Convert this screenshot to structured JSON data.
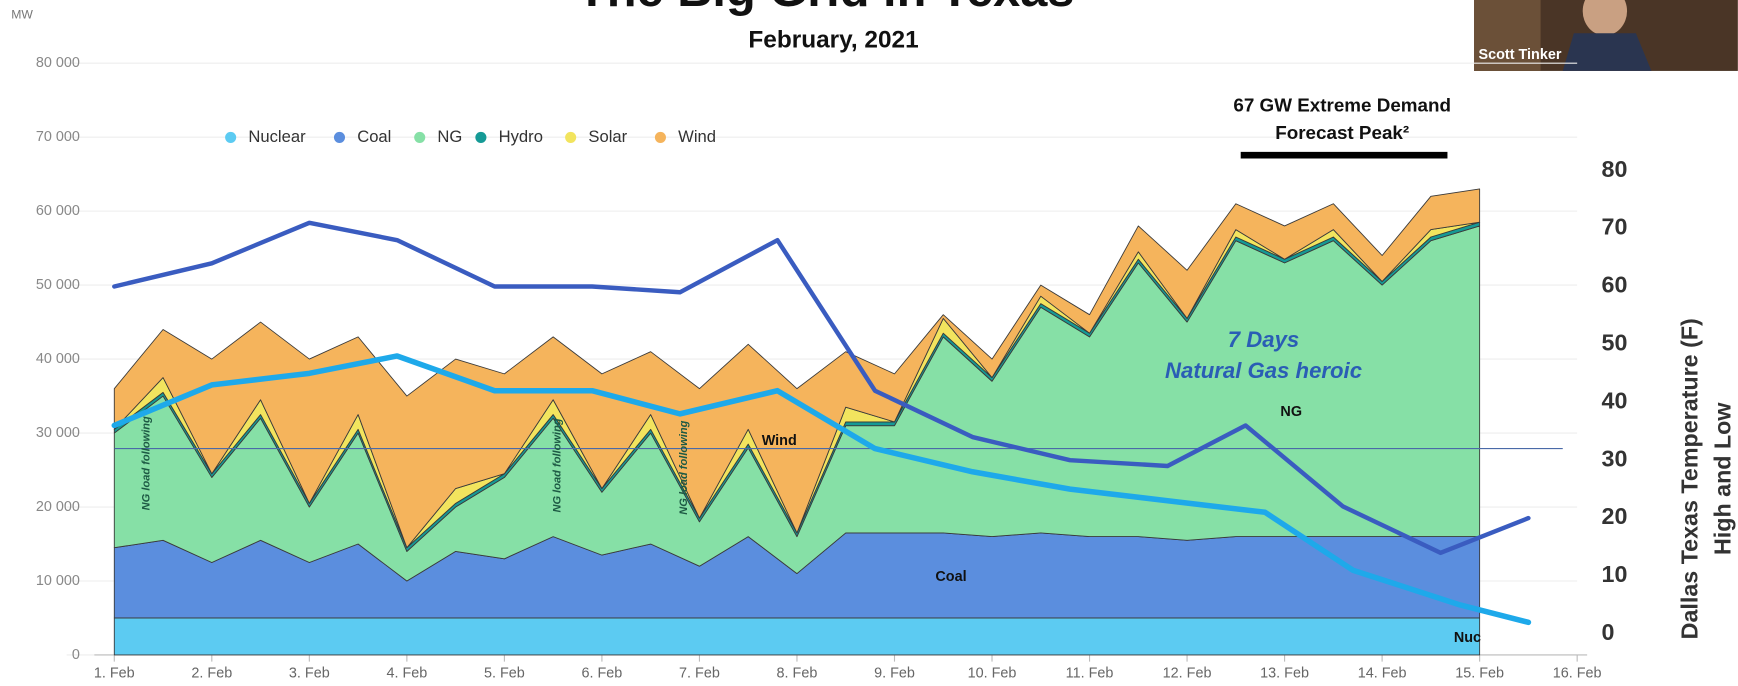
{
  "chart_data": {
    "type": "area",
    "stacked": true,
    "title": "The Big Grid in Texas",
    "subtitle": "February, 2021",
    "y_label": "MW",
    "y2_label": [
      "Dallas Texas Temperature (F)",
      "High and Low"
    ],
    "legend_position": "top-left",
    "grid": true,
    "x": [
      1,
      1.5,
      2,
      2.5,
      3,
      3.5,
      4,
      4.5,
      5,
      5.5,
      6,
      6.5,
      7,
      7.5,
      8,
      8.5,
      9,
      9.5,
      10,
      10.5,
      11,
      11.5,
      12,
      12.5,
      13,
      13.5,
      14,
      14.5,
      15
    ],
    "xlim": [
      1,
      16
    ],
    "xticks": [
      {
        "value": 1,
        "label": "1. Feb"
      },
      {
        "value": 2,
        "label": "2. Feb"
      },
      {
        "value": 3,
        "label": "3. Feb"
      },
      {
        "value": 4,
        "label": "4. Feb"
      },
      {
        "value": 5,
        "label": "5. Feb"
      },
      {
        "value": 6,
        "label": "6. Feb"
      },
      {
        "value": 7,
        "label": "7. Feb"
      },
      {
        "value": 8,
        "label": "8. Feb"
      },
      {
        "value": 9,
        "label": "9. Feb"
      },
      {
        "value": 10,
        "label": "10. Feb"
      },
      {
        "value": 11,
        "label": "11. Feb"
      },
      {
        "value": 12,
        "label": "12. Feb"
      },
      {
        "value": 13,
        "label": "13. Feb"
      },
      {
        "value": 14,
        "label": "14. Feb"
      },
      {
        "value": 15,
        "label": "15. Feb"
      },
      {
        "value": 16,
        "label": "16. Feb"
      }
    ],
    "ylim": [
      0,
      80000
    ],
    "yticks": [
      0,
      {
        "value": 10000,
        "label": "10 000"
      },
      {
        "value": 20000,
        "label": "20 000"
      },
      {
        "value": 30000,
        "label": "30 000"
      },
      {
        "value": 40000,
        "label": "40 000"
      },
      {
        "value": 50000,
        "label": "50 000"
      },
      {
        "value": 60000,
        "label": "60 000"
      },
      {
        "value": 70000,
        "label": "70 000"
      },
      {
        "value": 80000,
        "label": "80 000"
      }
    ],
    "y2lim": [
      0,
      80
    ],
    "y2ticks": [
      0,
      10,
      20,
      30,
      40,
      50,
      60,
      70,
      80
    ],
    "series": [
      {
        "name": "Nuclear",
        "color": "#5ccbf2",
        "values": [
          5000,
          5000,
          5000,
          5000,
          5000,
          5000,
          5000,
          5000,
          5000,
          5000,
          5000,
          5000,
          5000,
          5000,
          5000,
          5000,
          5000,
          5000,
          5000,
          5000,
          5000,
          5000,
          5000,
          5000,
          5000,
          5000,
          5000,
          5000,
          5000
        ]
      },
      {
        "name": "Coal",
        "color": "#5b8ede",
        "values": [
          9500,
          10500,
          7500,
          10500,
          7500,
          10000,
          5000,
          9000,
          8000,
          11000,
          8500,
          10000,
          7000,
          11000,
          6000,
          11500,
          11500,
          11500,
          11000,
          11500,
          11000,
          11000,
          10500,
          11000,
          11000,
          11000,
          11000,
          11000,
          11000
        ]
      },
      {
        "name": "NG",
        "color": "#86e0a6",
        "values": [
          15500,
          19500,
          11500,
          16500,
          7500,
          15000,
          4000,
          6000,
          11000,
          16000,
          8500,
          15000,
          6000,
          12000,
          5000,
          14500,
          14500,
          26500,
          21000,
          30500,
          27000,
          37000,
          29500,
          40000,
          37000,
          40000,
          34000,
          40000,
          42000
        ]
      },
      {
        "name": "Hydro",
        "color": "#159a96",
        "values": [
          500,
          500,
          500,
          500,
          500,
          500,
          500,
          500,
          500,
          500,
          500,
          500,
          500,
          500,
          500,
          500,
          500,
          500,
          500,
          500,
          500,
          500,
          500,
          500,
          500,
          500,
          500,
          500,
          500
        ]
      },
      {
        "name": "Solar",
        "color": "#f2e45e",
        "values": [
          0,
          2000,
          0,
          2000,
          0,
          2000,
          0,
          2000,
          0,
          2000,
          0,
          2000,
          0,
          2000,
          0,
          2000,
          0,
          2000,
          0,
          1000,
          0,
          1000,
          0,
          1000,
          0,
          1000,
          0,
          1000,
          0
        ]
      },
      {
        "name": "Wind",
        "color": "#f5b45c",
        "values": [
          5500,
          6500,
          15500,
          10500,
          19500,
          10500,
          20500,
          17500,
          13500,
          8500,
          15500,
          8500,
          17500,
          11500,
          19500,
          7500,
          6500,
          500,
          2500,
          1500,
          2500,
          3500,
          6500,
          3500,
          4500,
          3500,
          3500,
          4500,
          4500
        ]
      }
    ],
    "lines": [
      {
        "axis": "y2",
        "color": "#3a5cc0",
        "x": [
          1,
          2,
          3,
          3.9,
          4.9,
          5.9,
          6.8,
          7.8,
          8.8,
          9.8,
          10.8,
          11.8,
          12.6,
          13.6,
          14.6,
          15.5
        ],
        "values": [
          60,
          64,
          71,
          68,
          60,
          60,
          59,
          68,
          42,
          34,
          30,
          29,
          36,
          22,
          14,
          20
        ]
      },
      {
        "axis": "y2",
        "color": "#1ea9ea",
        "x": [
          1,
          2,
          3,
          3.9,
          4.9,
          5.9,
          6.8,
          7.8,
          8.8,
          9.8,
          10.8,
          11.8,
          12.8,
          13.7,
          14.8,
          15.5
        ],
        "values": [
          36,
          43,
          45,
          48,
          42,
          42,
          38,
          42,
          32,
          28,
          25,
          23,
          21,
          11,
          5,
          2
        ]
      }
    ],
    "reference_line": {
      "axis": "y2",
      "value": 32
    },
    "forecast_peak": {
      "text": [
        "67 GW Extreme Demand",
        "Forecast Peak²"
      ],
      "x": [
        12.55,
        14.67
      ]
    },
    "annotations": [
      "7 Days",
      "Natural Gas heroic",
      "NG",
      "Wind",
      "Coal",
      "Nuc",
      "NG load following",
      "NG load following",
      "NG load following"
    ]
  },
  "video_overlay": {
    "name": "Scott Tinker"
  }
}
